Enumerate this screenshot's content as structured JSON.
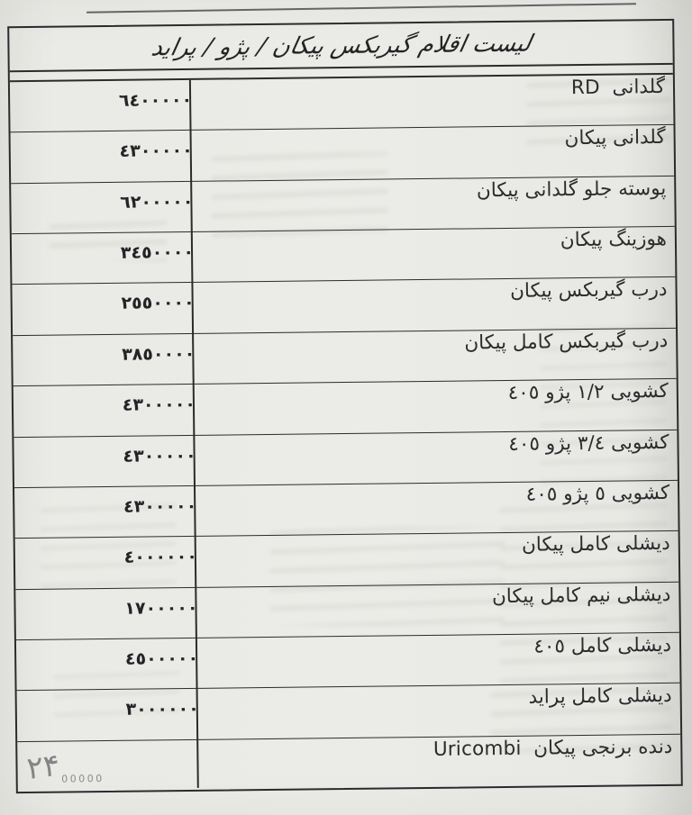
{
  "page": {
    "paper_color": "#ebebe7",
    "ink_color": "#2b2b2d"
  },
  "document": {
    "title": "لیست اقلام گیربکس پیکان / پژو / پراید",
    "rows": [
      {
        "item": "گلدانی  RD",
        "price": "٦٤٠٠٠٠٠"
      },
      {
        "item": "گلدانی پیکان",
        "price": "٤٣٠٠٠٠٠"
      },
      {
        "item": "پوسته جلو گلدانی پیکان",
        "price": "٦٢٠٠٠٠٠"
      },
      {
        "item": "هوزینگ پیکان",
        "price": "٣٤٥٠٠٠٠"
      },
      {
        "item": "درب گیربکس پیکان",
        "price": "٢٥٥٠٠٠٠"
      },
      {
        "item": "درب گیربکس کامل پیکان",
        "price": "٣٨٥٠٠٠٠"
      },
      {
        "item": "کشویی ١/٢ پژو ٤٠٥",
        "price": "٤٣٠٠٠٠٠"
      },
      {
        "item": "کشویی ٣/٤ پژو ٤٠٥",
        "price": "٤٣٠٠٠٠٠"
      },
      {
        "item": "کشویی ٥ پژو ٤٠٥",
        "price": "٤٣٠٠٠٠٠"
      },
      {
        "item": "دیشلی کامل پیکان",
        "price": "٤٠٠٠٠٠٠"
      },
      {
        "item": "دیشلی نیم کامل پیکان",
        "price": "١٧٠٠٠٠٠"
      },
      {
        "item": "دیشلی کامل ٤٠٥",
        "price": "٤٥٠٠٠٠٠"
      },
      {
        "item": "دیشلی کامل پراید",
        "price": "٣٠٠٠٠٠٠"
      },
      {
        "item": "دنده برنجی پیکان  Uricombi",
        "hand_digits": "۲۴",
        "hand_zeros": "00000"
      }
    ]
  }
}
